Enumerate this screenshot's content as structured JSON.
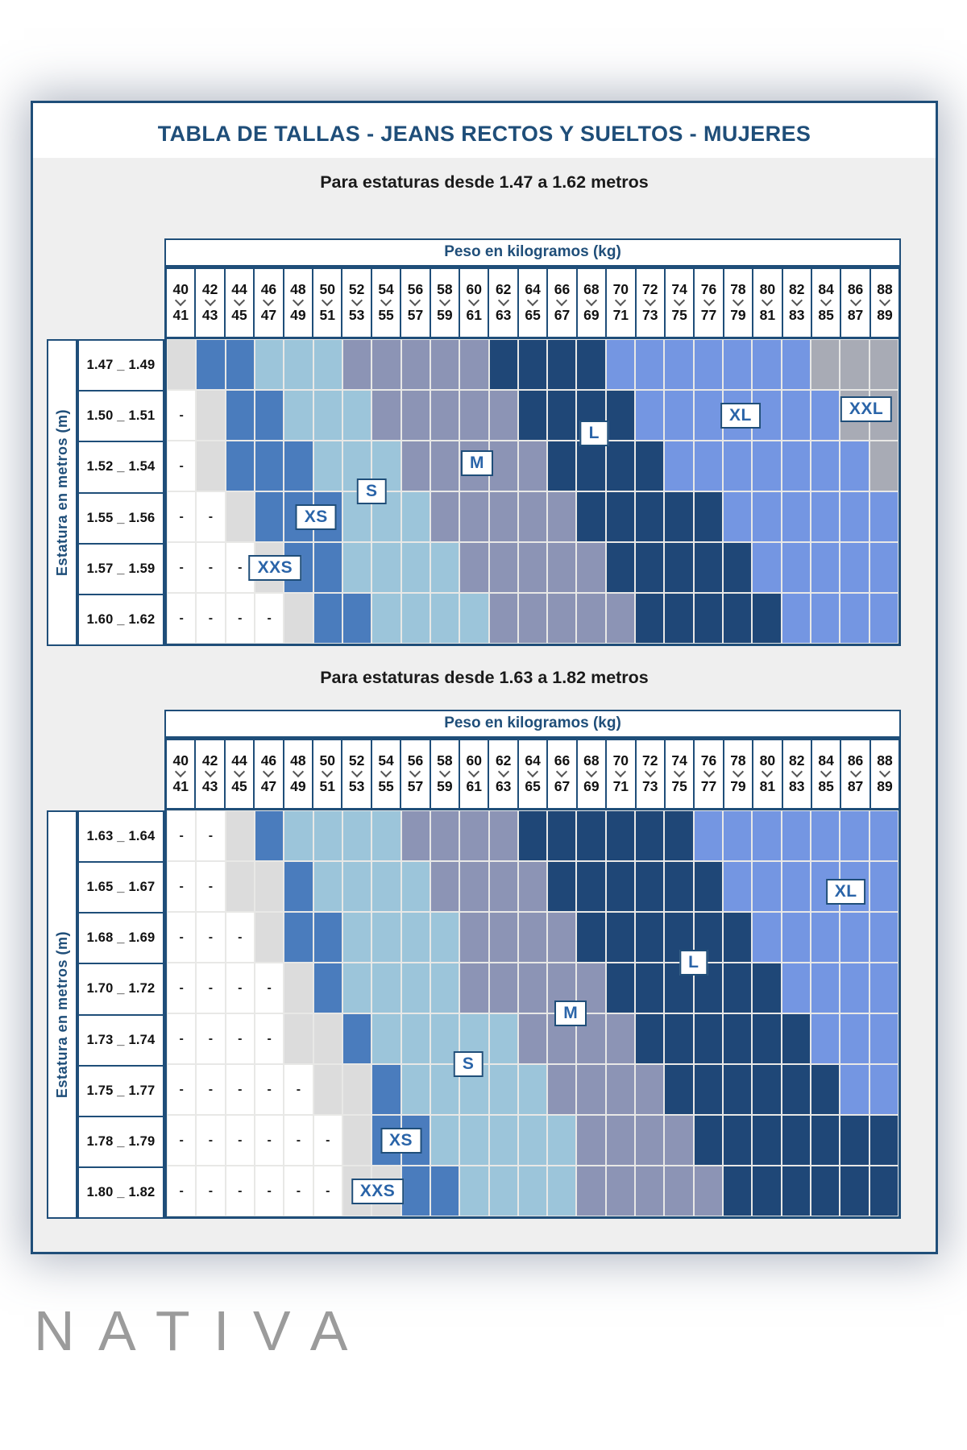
{
  "title": "TABLA DE TALLAS - JEANS RECTOS Y SUELTOS - MUJERES",
  "weight_axis_label": "Peso en kilogramos (kg)",
  "height_axis_label": "Estatura en metros (m)",
  "logo_text": "NATIVA",
  "colors": {
    "navy": "#1f4e79",
    "title_text": "#1f4e79",
    "panel_bg": "#efefef",
    "size_label_text": "#2a64a8",
    "logo_gray": "#9b9b9b",
    "grid_line": "#e8e8e6",
    "empty_white": "#ffffff",
    "size_xxs_zone": "#dcdcdc",
    "size_xs": "#4a7cbd",
    "size_s": "#9cc5da",
    "size_m": "#8c94b5",
    "size_l": "#1f4777",
    "size_xl": "#7496e2",
    "size_xxl_zone": "#a8abb5"
  },
  "weight_columns": [
    {
      "from": "40",
      "to": "41"
    },
    {
      "from": "42",
      "to": "43"
    },
    {
      "from": "44",
      "to": "45"
    },
    {
      "from": "46",
      "to": "47"
    },
    {
      "from": "48",
      "to": "49"
    },
    {
      "from": "50",
      "to": "51"
    },
    {
      "from": "52",
      "to": "53"
    },
    {
      "from": "54",
      "to": "55"
    },
    {
      "from": "56",
      "to": "57"
    },
    {
      "from": "58",
      "to": "59"
    },
    {
      "from": "60",
      "to": "61"
    },
    {
      "from": "62",
      "to": "63"
    },
    {
      "from": "64",
      "to": "65"
    },
    {
      "from": "66",
      "to": "67"
    },
    {
      "from": "68",
      "to": "69"
    },
    {
      "from": "70",
      "to": "71"
    },
    {
      "from": "72",
      "to": "73"
    },
    {
      "from": "74",
      "to": "75"
    },
    {
      "from": "76",
      "to": "77"
    },
    {
      "from": "78",
      "to": "79"
    },
    {
      "from": "80",
      "to": "81"
    },
    {
      "from": "82",
      "to": "83"
    },
    {
      "from": "84",
      "to": "85"
    },
    {
      "from": "86",
      "to": "87"
    },
    {
      "from": "88",
      "to": "89"
    }
  ],
  "chart_data": [
    {
      "type": "heatmap",
      "title": "Para estaturas desde 1.47 a 1.62 metros",
      "x_label": "Peso en kilogramos (kg)",
      "y_label": "Estatura en metros (m)",
      "x_categories": [
        "40-41",
        "42-43",
        "44-45",
        "46-47",
        "48-49",
        "50-51",
        "52-53",
        "54-55",
        "56-57",
        "58-59",
        "60-61",
        "62-63",
        "64-65",
        "66-67",
        "68-69",
        "70-71",
        "72-73",
        "74-75",
        "76-77",
        "78-79",
        "80-81",
        "82-83",
        "84-85",
        "86-87",
        "88-89"
      ],
      "y_categories": [
        "1.47 _ 1.49",
        "1.50 _ 1.51",
        "1.52 _ 1.54",
        "1.55 _ 1.56",
        "1.57 _ 1.59",
        "1.60 _ 1.62"
      ],
      "values": [
        [
          "XXS",
          "XS",
          "XS",
          "S",
          "S",
          "S",
          "M",
          "M",
          "M",
          "M",
          "M",
          "L",
          "L",
          "L",
          "L",
          "XL",
          "XL",
          "XL",
          "XL",
          "XL",
          "XL",
          "XL",
          "XXL",
          "XXL",
          "XXL"
        ],
        [
          "-",
          "XXS",
          "XS",
          "XS",
          "S",
          "S",
          "S",
          "M",
          "M",
          "M",
          "M",
          "M",
          "L",
          "L",
          "L",
          "L",
          "XL",
          "XL",
          "XL",
          "XL",
          "XL",
          "XL",
          "XL",
          "XXL",
          "XXL"
        ],
        [
          "-",
          "XXS",
          "XS",
          "XS",
          "XS",
          "S",
          "S",
          "S",
          "M",
          "M",
          "M",
          "M",
          "M",
          "L",
          "L",
          "L",
          "L",
          "XL",
          "XL",
          "XL",
          "XL",
          "XL",
          "XL",
          "XL",
          "XXL"
        ],
        [
          "-",
          "-",
          "XXS",
          "XS",
          "XS",
          "XS",
          "S",
          "S",
          "S",
          "M",
          "M",
          "M",
          "M",
          "M",
          "L",
          "L",
          "L",
          "L",
          "L",
          "XL",
          "XL",
          "XL",
          "XL",
          "XL",
          "XL"
        ],
        [
          "-",
          "-",
          "-",
          "XXS",
          "XS",
          "XS",
          "S",
          "S",
          "S",
          "S",
          "M",
          "M",
          "M",
          "M",
          "M",
          "L",
          "L",
          "L",
          "L",
          "L",
          "XL",
          "XL",
          "XL",
          "XL",
          "XL"
        ],
        [
          "-",
          "-",
          "-",
          "-",
          "XXS",
          "XS",
          "XS",
          "S",
          "S",
          "S",
          "S",
          "M",
          "M",
          "M",
          "M",
          "M",
          "L",
          "L",
          "L",
          "L",
          "L",
          "XL",
          "XL",
          "XL",
          "XL"
        ]
      ],
      "size_labels": [
        {
          "text": "XXS",
          "row": 4.5,
          "col": 3.7
        },
        {
          "text": "XS",
          "row": 3.5,
          "col": 5.1
        },
        {
          "text": "S",
          "row": 3.0,
          "col": 7.0
        },
        {
          "text": "M",
          "row": 2.45,
          "col": 10.6
        },
        {
          "text": "L",
          "row": 1.85,
          "col": 14.6
        },
        {
          "text": "XL",
          "row": 1.5,
          "col": 19.6
        },
        {
          "text": "XXL",
          "row": 1.38,
          "col": 23.9
        }
      ]
    },
    {
      "type": "heatmap",
      "title": "Para estaturas desde 1.63 a 1.82 metros",
      "x_label": "Peso en kilogramos (kg)",
      "y_label": "Estatura en metros (m)",
      "x_categories": [
        "40-41",
        "42-43",
        "44-45",
        "46-47",
        "48-49",
        "50-51",
        "52-53",
        "54-55",
        "56-57",
        "58-59",
        "60-61",
        "62-63",
        "64-65",
        "66-67",
        "68-69",
        "70-71",
        "72-73",
        "74-75",
        "76-77",
        "78-79",
        "80-81",
        "82-83",
        "84-85",
        "86-87",
        "88-89"
      ],
      "y_categories": [
        "1.63 _ 1.64",
        "1.65 _ 1.67",
        "1.68 _ 1.69",
        "1.70 _ 1.72",
        "1.73 _ 1.74",
        "1.75 _ 1.77",
        "1.78 _ 1.79",
        "1.80 _ 1.82"
      ],
      "values": [
        [
          "-",
          "-",
          "XXS",
          "XS",
          "S",
          "S",
          "S",
          "S",
          "M",
          "M",
          "M",
          "M",
          "L",
          "L",
          "L",
          "L",
          "L",
          "L",
          "XL",
          "XL",
          "XL",
          "XL",
          "XL",
          "XL",
          "XL"
        ],
        [
          "-",
          "-",
          "XXS",
          "XXS",
          "XS",
          "S",
          "S",
          "S",
          "S",
          "M",
          "M",
          "M",
          "M",
          "L",
          "L",
          "L",
          "L",
          "L",
          "L",
          "XL",
          "XL",
          "XL",
          "XL",
          "XL",
          "XL"
        ],
        [
          "-",
          "-",
          "-",
          "XXS",
          "XS",
          "XS",
          "S",
          "S",
          "S",
          "S",
          "M",
          "M",
          "M",
          "M",
          "L",
          "L",
          "L",
          "L",
          "L",
          "L",
          "XL",
          "XL",
          "XL",
          "XL",
          "XL"
        ],
        [
          "-",
          "-",
          "-",
          "-",
          "XXS",
          "XS",
          "S",
          "S",
          "S",
          "S",
          "M",
          "M",
          "M",
          "M",
          "M",
          "L",
          "L",
          "L",
          "L",
          "L",
          "L",
          "XL",
          "XL",
          "XL",
          "XL"
        ],
        [
          "-",
          "-",
          "-",
          "-",
          "XXS",
          "XXS",
          "XS",
          "S",
          "S",
          "S",
          "S",
          "S",
          "M",
          "M",
          "M",
          "M",
          "L",
          "L",
          "L",
          "L",
          "L",
          "L",
          "XL",
          "XL",
          "XL"
        ],
        [
          "-",
          "-",
          "-",
          "-",
          "-",
          "XXS",
          "XXS",
          "XS",
          "S",
          "S",
          "S",
          "S",
          "S",
          "M",
          "M",
          "M",
          "M",
          "L",
          "L",
          "L",
          "L",
          "L",
          "L",
          "XL",
          "XL"
        ],
        [
          "-",
          "-",
          "-",
          "-",
          "-",
          "-",
          "XXS",
          "XS",
          "XS",
          "S",
          "S",
          "S",
          "S",
          "S",
          "M",
          "M",
          "M",
          "M",
          "L",
          "L",
          "L",
          "L",
          "L",
          "L",
          "L"
        ],
        [
          "-",
          "-",
          "-",
          "-",
          "-",
          "-",
          "XXS",
          "XXS",
          "XS",
          "XS",
          "S",
          "S",
          "S",
          "S",
          "M",
          "M",
          "M",
          "M",
          "M",
          "L",
          "L",
          "L",
          "L",
          "L",
          "L"
        ]
      ],
      "size_labels": [
        {
          "text": "XXS",
          "row": 7.5,
          "col": 7.2
        },
        {
          "text": "XS",
          "row": 6.5,
          "col": 8.0
        },
        {
          "text": "S",
          "row": 5.0,
          "col": 10.3
        },
        {
          "text": "M",
          "row": 4.0,
          "col": 13.8
        },
        {
          "text": "L",
          "row": 3.0,
          "col": 18.0
        },
        {
          "text": "XL",
          "row": 1.6,
          "col": 23.2
        }
      ]
    }
  ]
}
